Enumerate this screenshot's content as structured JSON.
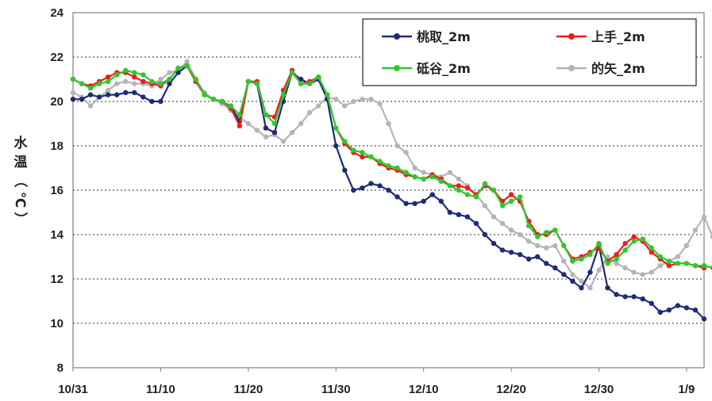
{
  "chart_data": {
    "type": "line",
    "ylabel_chars": [
      "水",
      "温",
      "（",
      "℃",
      "）"
    ],
    "ylim": [
      8,
      24
    ],
    "yticks": [
      "8",
      "10",
      "12",
      "14",
      "16",
      "18",
      "20",
      "22",
      "24"
    ],
    "xticks": [
      "10/31",
      "11/10",
      "11/20",
      "11/30",
      "12/10",
      "12/20",
      "12/30",
      "1/9"
    ],
    "x_range_days": [
      0,
      72
    ],
    "grid": "horizontal dotted",
    "legend_position": "top-right",
    "series": [
      {
        "name": "桃取_2m",
        "color": "#1f2a7a",
        "values": [
          20.1,
          20.1,
          20.3,
          20.2,
          20.3,
          20.3,
          20.4,
          20.4,
          20.2,
          20.0,
          20.0,
          20.8,
          21.3,
          21.6,
          21.0,
          20.3,
          20.1,
          20.0,
          19.8,
          19.1,
          20.9,
          20.8,
          18.8,
          18.6,
          20.0,
          21.3,
          21.0,
          20.8,
          21.0,
          20.1,
          18.0,
          16.9,
          16.0,
          16.1,
          16.3,
          16.2,
          16.0,
          15.7,
          15.4,
          15.4,
          15.5,
          15.8,
          15.5,
          15.0,
          14.9,
          14.8,
          14.5,
          14.0,
          13.6,
          13.3,
          13.2,
          13.1,
          12.9,
          13.0,
          12.7,
          12.5,
          12.2,
          11.9,
          11.6,
          12.3,
          13.5,
          11.6,
          11.3,
          11.2,
          11.2,
          11.1,
          10.9,
          10.5,
          10.6,
          10.8,
          10.7,
          10.6,
          10.2
        ]
      },
      {
        "name": "上手_2m",
        "color": "#ee1c1c",
        "values": [
          21.0,
          20.8,
          20.7,
          20.9,
          21.1,
          21.3,
          21.3,
          21.1,
          20.9,
          20.8,
          20.7,
          21.0,
          21.5,
          21.6,
          20.9,
          20.3,
          20.1,
          20.0,
          19.7,
          18.9,
          20.9,
          20.9,
          19.4,
          19.3,
          20.5,
          21.4,
          20.8,
          20.9,
          21.1,
          20.3,
          18.8,
          18.1,
          17.7,
          17.5,
          17.5,
          17.2,
          17.0,
          16.9,
          16.7,
          16.6,
          16.5,
          16.7,
          16.5,
          16.2,
          16.2,
          16.1,
          15.8,
          16.2,
          16.0,
          15.5,
          15.8,
          15.5,
          14.6,
          14.0,
          14.0,
          14.2,
          13.5,
          12.9,
          13.0,
          13.2,
          13.4,
          12.8,
          13.1,
          13.6,
          13.9,
          13.7,
          13.2,
          12.9,
          12.6,
          12.7,
          12.7,
          12.6,
          12.5
        ]
      },
      {
        "name": "砥谷_2m",
        "color": "#2ec92e",
        "values": [
          21.0,
          20.8,
          20.6,
          20.8,
          20.9,
          21.2,
          21.4,
          21.3,
          21.2,
          20.9,
          20.8,
          21.0,
          21.5,
          21.6,
          21.0,
          20.3,
          20.1,
          20.0,
          19.8,
          19.4,
          20.9,
          20.8,
          19.4,
          19.0,
          20.3,
          21.3,
          20.8,
          20.8,
          21.1,
          20.3,
          18.8,
          18.2,
          17.8,
          17.7,
          17.5,
          17.3,
          17.1,
          17.0,
          16.8,
          16.6,
          16.5,
          16.6,
          16.4,
          16.2,
          16.0,
          15.8,
          15.7,
          16.3,
          16.0,
          15.3,
          15.5,
          15.7,
          14.4,
          13.9,
          14.1,
          14.2,
          13.5,
          12.8,
          12.9,
          13.1,
          13.6,
          12.7,
          12.9,
          13.3,
          13.7,
          13.8,
          13.4,
          13.0,
          12.8,
          12.7,
          12.7,
          12.6,
          12.6,
          12.5,
          12.4,
          12.3
        ]
      },
      {
        "name": "的矢_2m",
        "color": "#b5b5b5",
        "values": [
          20.4,
          20.2,
          19.8,
          20.2,
          20.5,
          20.8,
          20.9,
          20.8,
          20.8,
          20.7,
          21.0,
          21.3,
          21.4,
          21.8,
          21.0,
          20.4,
          20.1,
          19.9,
          19.6,
          19.3,
          19.0,
          18.7,
          18.4,
          18.5,
          18.2,
          18.6,
          19.0,
          19.5,
          19.8,
          20.2,
          20.1,
          19.8,
          20.0,
          20.1,
          20.1,
          19.9,
          19.0,
          18.0,
          17.7,
          17.0,
          16.8,
          16.7,
          16.6,
          16.8,
          16.5,
          16.2,
          15.8,
          15.3,
          14.8,
          14.5,
          14.2,
          14.0,
          13.7,
          13.5,
          13.4,
          13.5,
          12.8,
          12.2,
          11.9,
          11.6,
          12.4,
          13.0,
          12.7,
          12.5,
          12.3,
          12.2,
          12.3,
          12.6,
          12.8,
          13.0,
          13.5,
          14.2,
          14.8,
          13.9,
          14.2,
          13.8,
          13.9,
          14.1
        ]
      }
    ]
  }
}
